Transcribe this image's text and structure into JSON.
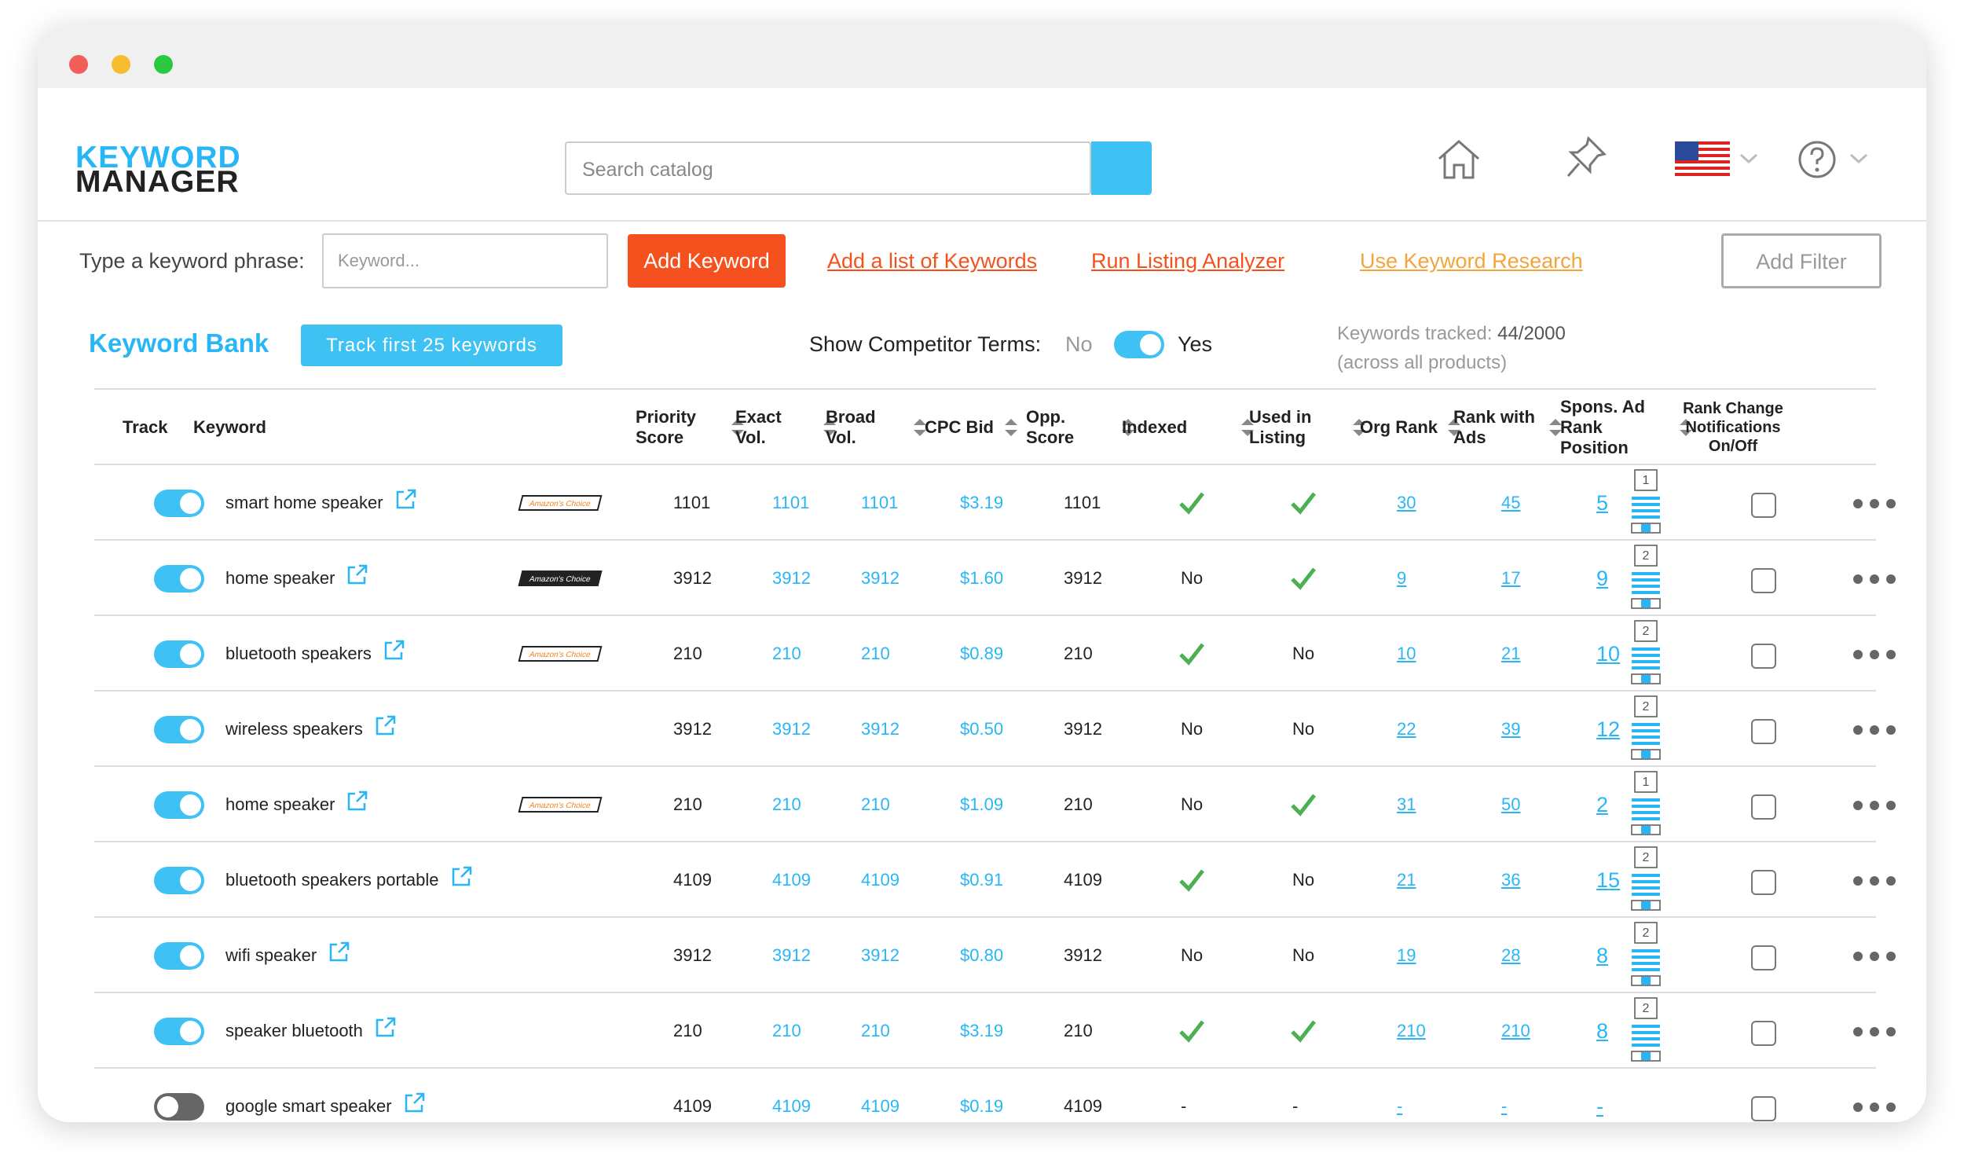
{
  "header": {
    "logo_line1": "KEYWORD",
    "logo_line2": "MANAGER",
    "search_placeholder": "Search catalog"
  },
  "toolbar": {
    "phrase_label": "Type a keyword phrase:",
    "keyword_placeholder": "Keyword...",
    "add_keyword": "Add Keyword",
    "links": [
      "Add a list of Keywords",
      "Run Listing Analyzer",
      "Use Keyword Research"
    ],
    "add_filter": "Add Filter"
  },
  "bank": {
    "title": "Keyword Bank",
    "track_button": "Track first 25 keywords",
    "competitor_label": "Show Competitor Terms:",
    "no": "No",
    "yes": "Yes",
    "competitor_on": true,
    "tracked_label": "Keywords tracked:",
    "tracked_value": "44/2000",
    "tracked_note": "(across all products)"
  },
  "table": {
    "columns": [
      {
        "label": "Track",
        "sortable": false
      },
      {
        "label": "Keyword",
        "sortable": false
      },
      {
        "label": "Priority Score",
        "sortable": true
      },
      {
        "label": "Exact Vol.",
        "sortable": true
      },
      {
        "label": "Broad Vol.",
        "sortable": true
      },
      {
        "label": "CPC Bid",
        "sortable": true
      },
      {
        "label": "Opp. Score",
        "sortable": true
      },
      {
        "label": "Indexed",
        "sortable": true
      },
      {
        "label": "Used in Listing",
        "sortable": true
      },
      {
        "label": "Org Rank",
        "sortable": true
      },
      {
        "label": "Rank with Ads",
        "sortable": true
      },
      {
        "label": "Spons. Ad Rank Position",
        "sortable": true
      },
      {
        "label": "Rank Change Notifications On/Off",
        "sortable": false
      }
    ],
    "rows": [
      {
        "track": true,
        "keyword": "smart home speaker",
        "badge": "Amazon's Choice",
        "badge_style": "light",
        "priority": "1101",
        "exact": "1101",
        "broad": "1101",
        "cpc": "$3.19",
        "opp": "1101",
        "indexed": true,
        "used": true,
        "org": "30",
        "rank_ads": "45",
        "spons": "5",
        "page": "1"
      },
      {
        "track": true,
        "keyword": "home speaker",
        "badge": "Amazon's Choice",
        "badge_style": "dark",
        "priority": "3912",
        "exact": "3912",
        "broad": "3912",
        "cpc": "$1.60",
        "opp": "3912",
        "indexed": "No",
        "used": true,
        "org": "9",
        "rank_ads": "17",
        "spons": "9",
        "page": "2"
      },
      {
        "track": true,
        "keyword": "bluetooth speakers",
        "badge": "Amazon's Choice",
        "badge_style": "light",
        "priority": "210",
        "exact": "210",
        "broad": "210",
        "cpc": "$0.89",
        "opp": "210",
        "indexed": true,
        "used": "No",
        "org": "10",
        "rank_ads": "21",
        "spons": "10",
        "page": "2"
      },
      {
        "track": true,
        "keyword": "wireless speakers",
        "badge": null,
        "badge_style": null,
        "priority": "3912",
        "exact": "3912",
        "broad": "3912",
        "cpc": "$0.50",
        "opp": "3912",
        "indexed": "No",
        "used": "No",
        "org": "22",
        "rank_ads": "39",
        "spons": "12",
        "page": "2"
      },
      {
        "track": true,
        "keyword": "home speaker",
        "badge": "Amazon's Choice",
        "badge_style": "light",
        "priority": "210",
        "exact": "210",
        "broad": "210",
        "cpc": "$1.09",
        "opp": "210",
        "indexed": "No",
        "used": true,
        "org": "31",
        "rank_ads": "50",
        "spons": "2",
        "page": "1"
      },
      {
        "track": true,
        "keyword": "bluetooth speakers portable",
        "badge": null,
        "badge_style": null,
        "priority": "4109",
        "exact": "4109",
        "broad": "4109",
        "cpc": "$0.91",
        "opp": "4109",
        "indexed": true,
        "used": "No",
        "org": "21",
        "rank_ads": "36",
        "spons": "15",
        "page": "2"
      },
      {
        "track": true,
        "keyword": "wifi speaker",
        "badge": null,
        "badge_style": null,
        "priority": "3912",
        "exact": "3912",
        "broad": "3912",
        "cpc": "$0.80",
        "opp": "3912",
        "indexed": "No",
        "used": "No",
        "org": "19",
        "rank_ads": "28",
        "spons": "8",
        "page": "2"
      },
      {
        "track": true,
        "keyword": "speaker bluetooth",
        "badge": null,
        "badge_style": null,
        "priority": "210",
        "exact": "210",
        "broad": "210",
        "cpc": "$3.19",
        "opp": "210",
        "indexed": true,
        "used": true,
        "org": "210",
        "rank_ads": "210",
        "spons": "8",
        "page": "2"
      },
      {
        "track": false,
        "keyword": "google smart speaker",
        "badge": null,
        "badge_style": null,
        "priority": "4109",
        "exact": "4109",
        "broad": "4109",
        "cpc": "$0.19",
        "opp": "4109",
        "indexed": "-",
        "used": "-",
        "org": "-",
        "rank_ads": "-",
        "spons": "-",
        "page": null
      }
    ]
  }
}
